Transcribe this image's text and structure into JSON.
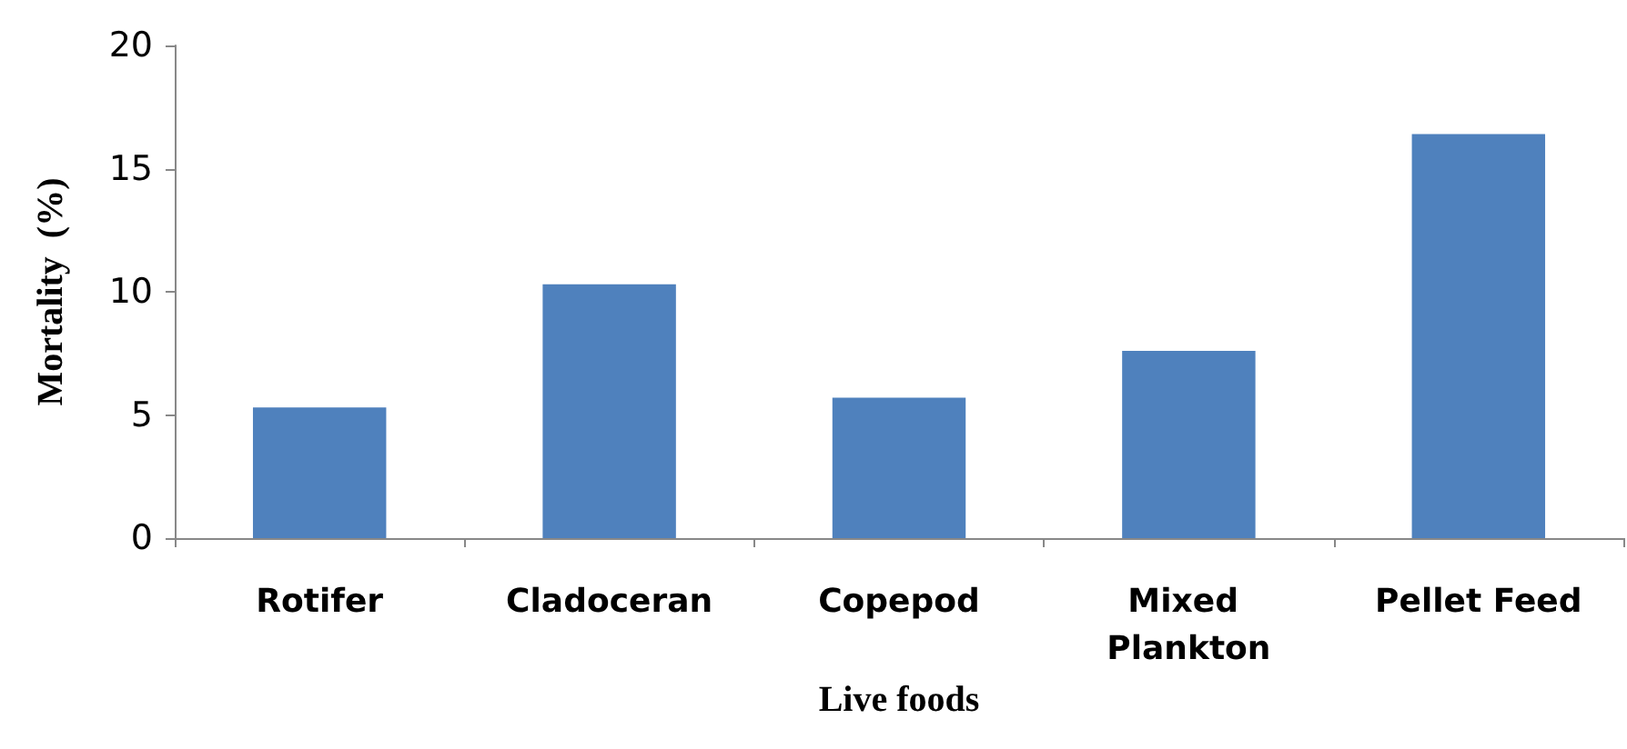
{
  "chart_data": {
    "type": "bar",
    "xlabel": "Live foods",
    "ylabel": "Mortality  (%)",
    "categories": [
      "Rotifer",
      "Cladoceran",
      "Copepod",
      "Mixed Plankton",
      "Pellet Feed"
    ],
    "values": [
      5.3,
      10.3,
      5.7,
      7.6,
      16.4
    ],
    "color": "#4f81bd",
    "ylim": [
      0,
      20
    ],
    "yticks": [
      0,
      5,
      10,
      15,
      20
    ],
    "grid": false
  }
}
